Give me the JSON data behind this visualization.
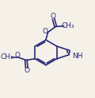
{
  "bg_color": "#f5f0e8",
  "line_color": "#2a2a7a",
  "bond_width": 1.2,
  "font_size": 6.5,
  "text_color": "#2a2a7a",
  "figsize": [
    1.2,
    1.23
  ],
  "dpi": 100,
  "xlim": [
    0,
    12
  ],
  "ylim": [
    0,
    12
  ]
}
